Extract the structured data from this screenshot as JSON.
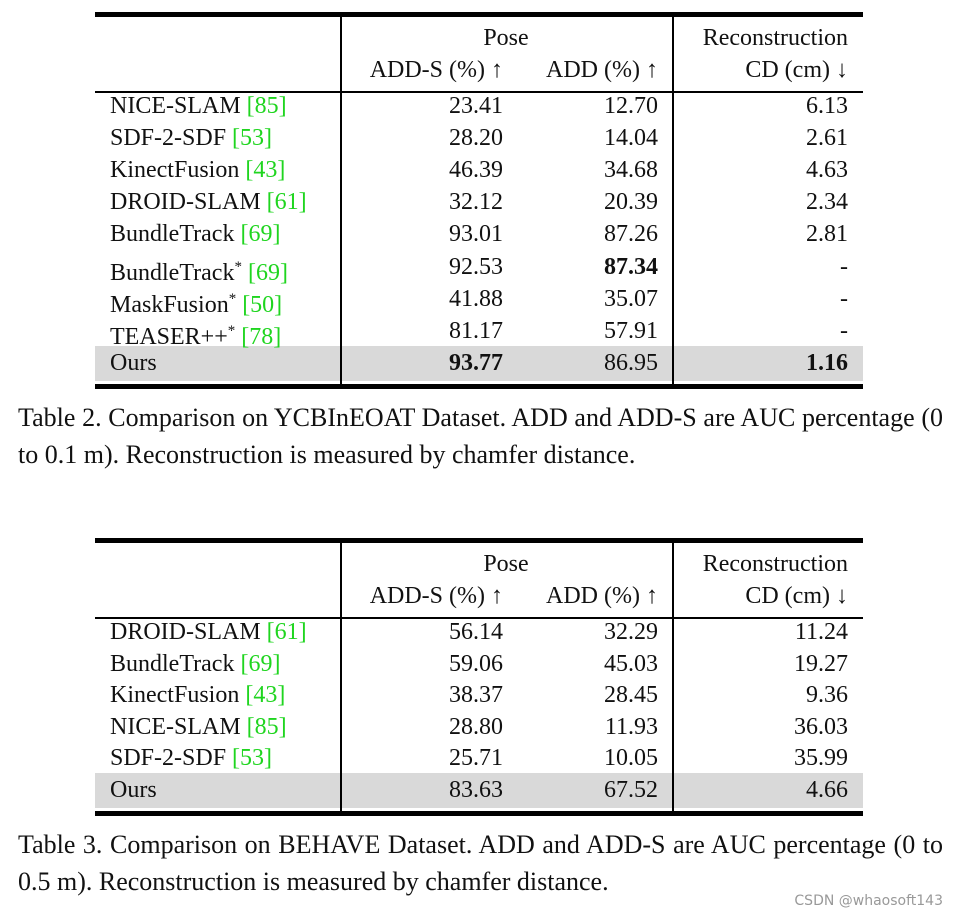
{
  "tables": [
    {
      "header": {
        "pose": "Pose",
        "reconstruction": "Reconstruction",
        "columns": [
          "ADD-S (%) ↑",
          "ADD (%) ↑",
          "CD (cm) ↓"
        ]
      },
      "rows": [
        {
          "method": "NICE-SLAM",
          "cite": "[85]",
          "values": [
            "23.41",
            "12.70",
            "6.13"
          ]
        },
        {
          "method": "SDF-2-SDF",
          "cite": "[53]",
          "values": [
            "28.20",
            "14.04",
            "2.61"
          ]
        },
        {
          "method": "KinectFusion",
          "cite": "[43]",
          "values": [
            "46.39",
            "34.68",
            "4.63"
          ]
        },
        {
          "method": "DROID-SLAM",
          "cite": "[61]",
          "values": [
            "32.12",
            "20.39",
            "2.34"
          ]
        },
        {
          "method": "BundleTrack",
          "cite": "[69]",
          "values": [
            "93.01",
            "87.26",
            "2.81"
          ]
        },
        {
          "method": "BundleTrack",
          "mark": "*",
          "cite": "[69]",
          "values": [
            "92.53",
            "87.34",
            "-"
          ],
          "bold": [
            1
          ]
        },
        {
          "method": "MaskFusion",
          "mark": "*",
          "cite": "[50]",
          "values": [
            "41.88",
            "35.07",
            "-"
          ]
        },
        {
          "method": "TEASER++",
          "mark": "*",
          "cite": "[78]",
          "values": [
            "81.17",
            "57.91",
            "-"
          ]
        },
        {
          "method": "Ours",
          "values": [
            "93.77",
            "86.95",
            "1.16"
          ],
          "bold": [
            0,
            2
          ],
          "highlight": true
        }
      ],
      "caption": "Table 2. Comparison on YCBInEOAT Dataset. ADD and ADD-S are AUC percentage (0 to 0.1 m). Reconstruction is measured by chamfer distance."
    },
    {
      "header": {
        "pose": "Pose",
        "reconstruction": "Reconstruction",
        "columns": [
          "ADD-S (%) ↑",
          "ADD (%) ↑",
          "CD (cm) ↓"
        ]
      },
      "rows": [
        {
          "method": "DROID-SLAM",
          "cite": "[61]",
          "values": [
            "56.14",
            "32.29",
            "11.24"
          ]
        },
        {
          "method": "BundleTrack",
          "cite": "[69]",
          "values": [
            "59.06",
            "45.03",
            "19.27"
          ]
        },
        {
          "method": "KinectFusion",
          "cite": "[43]",
          "values": [
            "38.37",
            "28.45",
            "9.36"
          ]
        },
        {
          "method": "NICE-SLAM",
          "cite": "[85]",
          "values": [
            "28.80",
            "11.93",
            "36.03"
          ]
        },
        {
          "method": "SDF-2-SDF",
          "cite": "[53]",
          "values": [
            "25.71",
            "10.05",
            "35.99"
          ]
        },
        {
          "method": "Ours",
          "values": [
            "83.63",
            "67.52",
            "4.66"
          ],
          "highlight": true
        }
      ],
      "caption": "Table 3. Comparison on BEHAVE Dataset. ADD and ADD-S are AUC percentage (0 to 0.5 m). Reconstruction is measured by chamfer distance."
    }
  ],
  "watermark": "CSDN @whaosoft143"
}
